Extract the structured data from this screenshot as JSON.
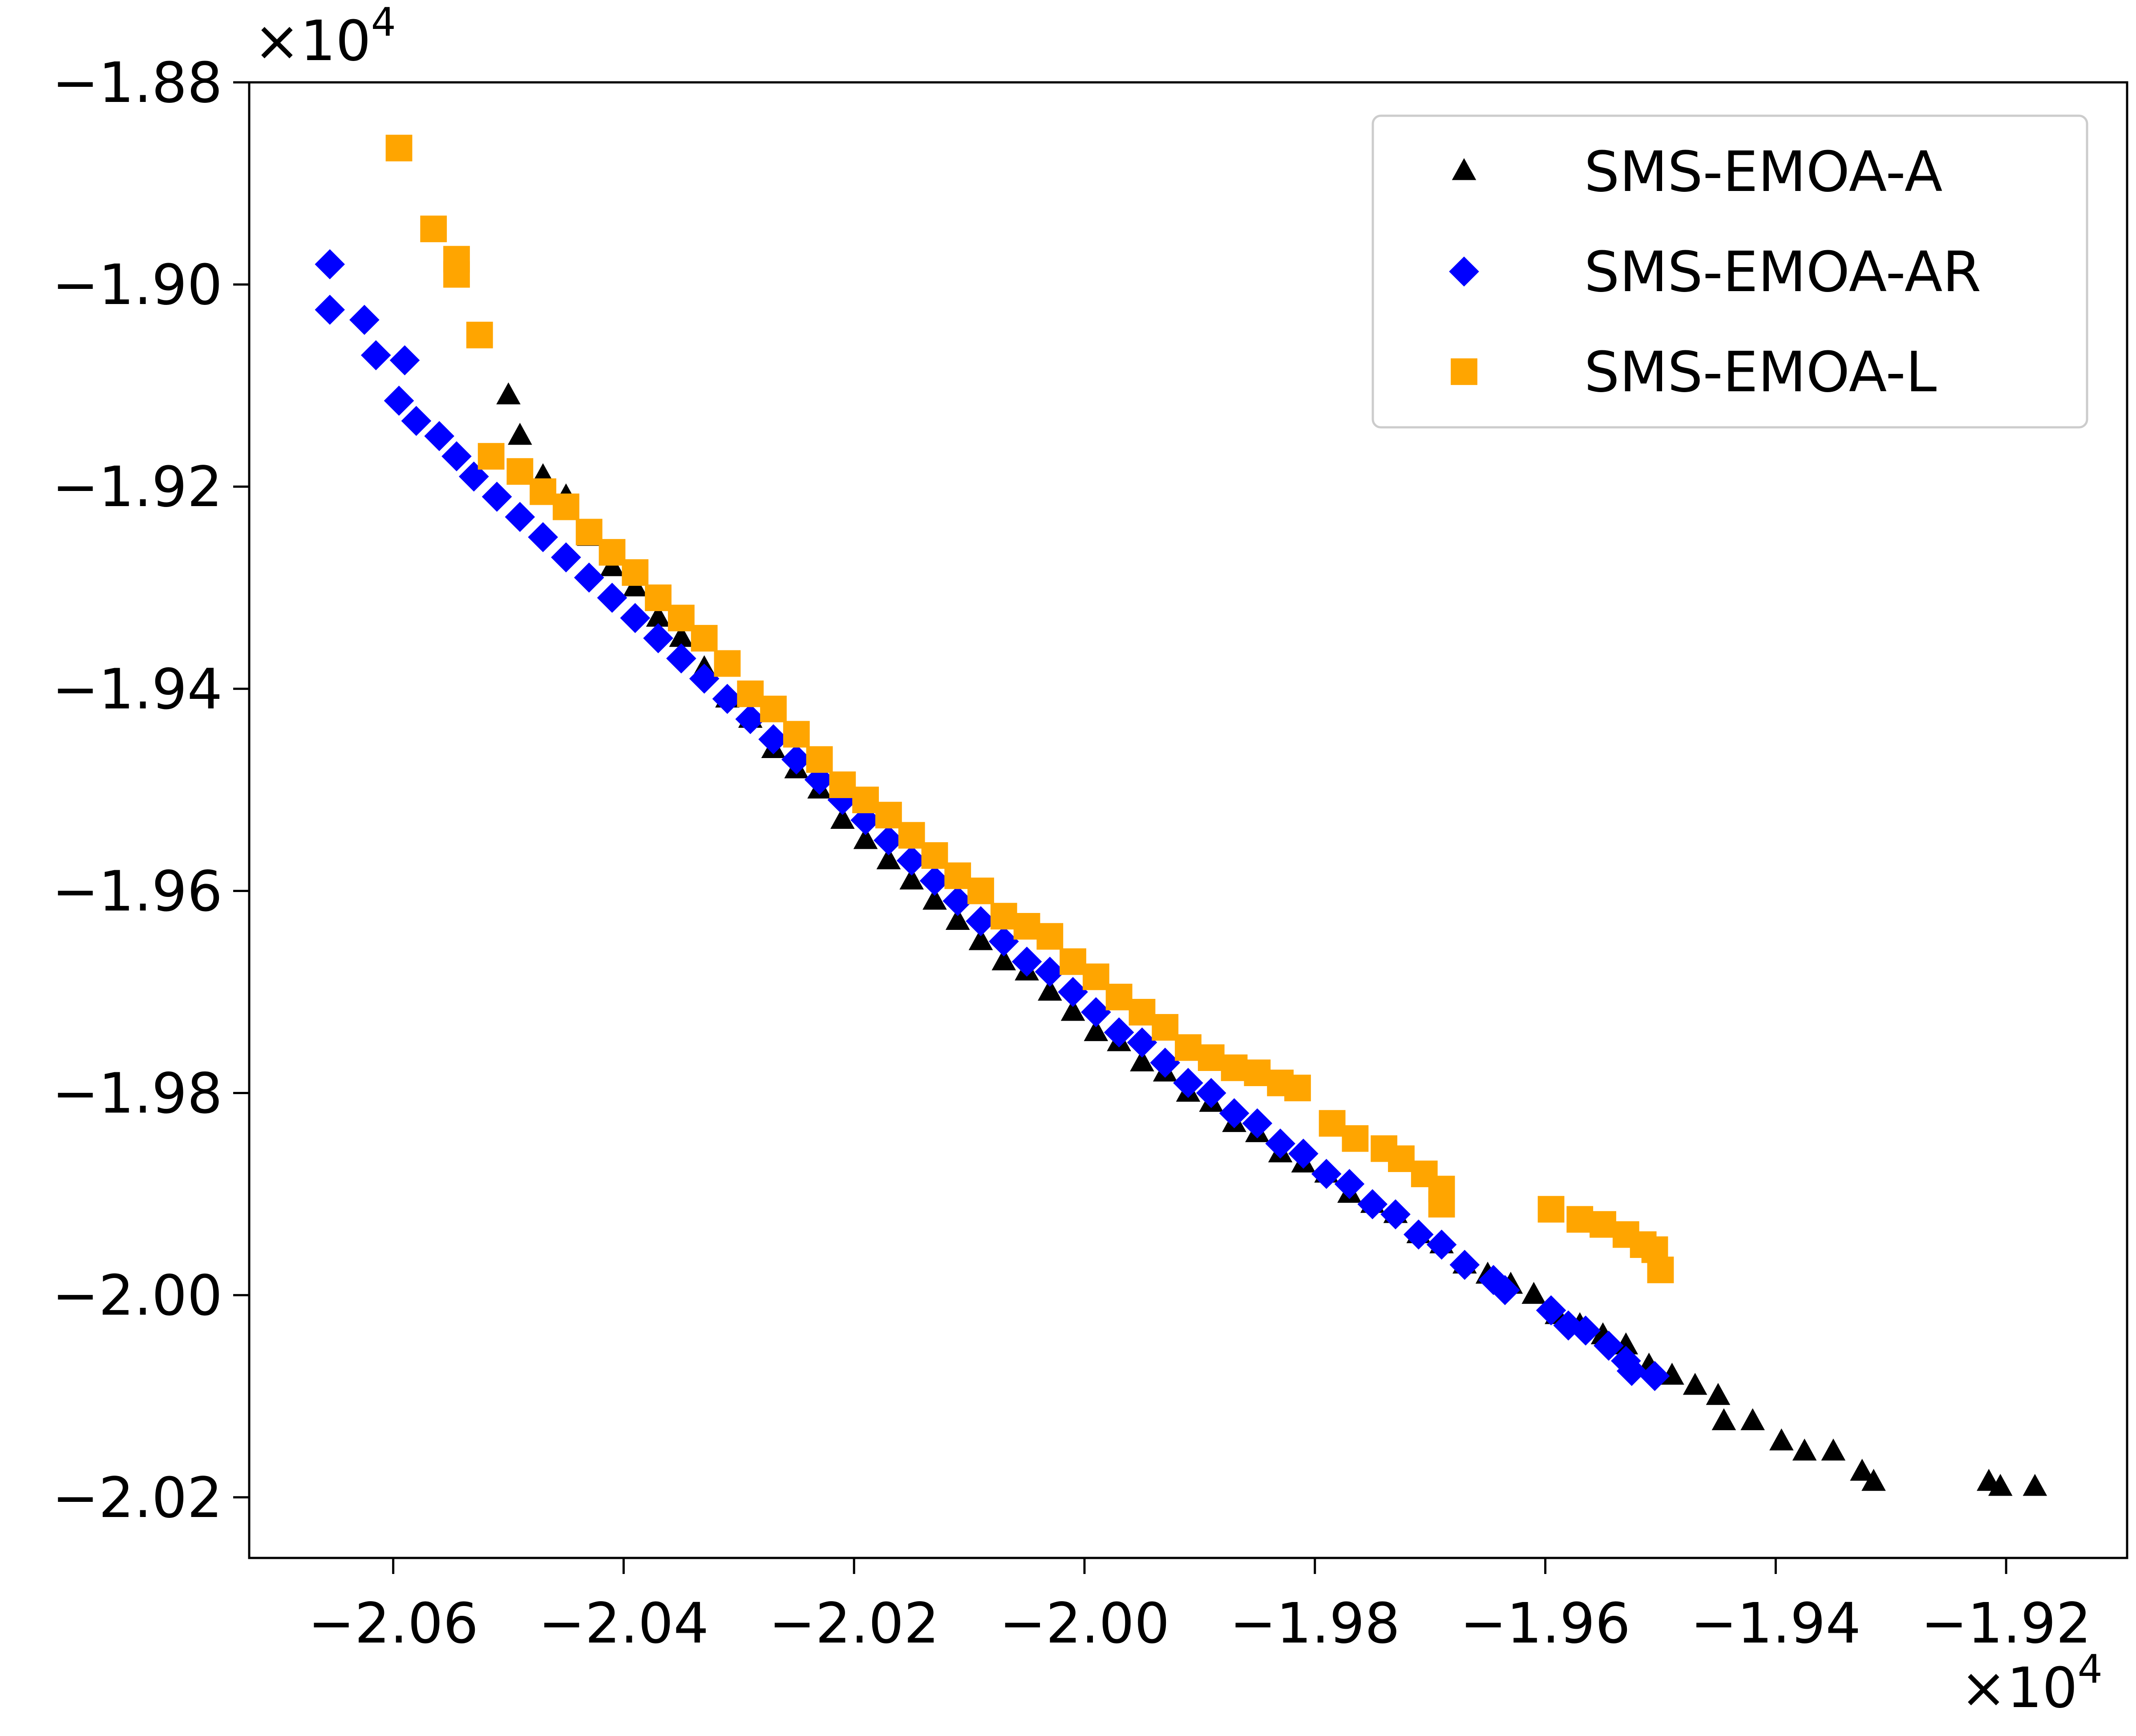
{
  "chart_data": {
    "type": "scatter",
    "x_multiplier_label": "×10",
    "x_multiplier_exp": "4",
    "y_multiplier_label": "×10",
    "y_multiplier_exp": "4",
    "xlim": [
      -2.0725,
      -1.9095
    ],
    "ylim": [
      -2.026,
      -1.88
    ],
    "x_ticks": [
      {
        "value": -2.06,
        "label": "−2.06"
      },
      {
        "value": -2.04,
        "label": "−2.04"
      },
      {
        "value": -2.02,
        "label": "−2.02"
      },
      {
        "value": -2.0,
        "label": "−2.00"
      },
      {
        "value": -1.98,
        "label": "−1.98"
      },
      {
        "value": -1.96,
        "label": "−1.96"
      },
      {
        "value": -1.94,
        "label": "−1.94"
      },
      {
        "value": -1.92,
        "label": "−1.92"
      }
    ],
    "y_ticks": [
      {
        "value": -1.88,
        "label": "−1.88"
      },
      {
        "value": -1.9,
        "label": "−1.90"
      },
      {
        "value": -1.92,
        "label": "−1.92"
      },
      {
        "value": -1.94,
        "label": "−1.94"
      },
      {
        "value": -1.96,
        "label": "−1.96"
      },
      {
        "value": -1.98,
        "label": "−1.98"
      },
      {
        "value": -2.0,
        "label": "−2.00"
      },
      {
        "value": -2.02,
        "label": "−2.02"
      }
    ],
    "legend_position": "top-right",
    "series": [
      {
        "name": "SMS-EMOA-A",
        "marker": "triangle",
        "color": "#000000",
        "points": [
          [
            -2.05,
            -1.911
          ],
          [
            -2.049,
            -1.915
          ],
          [
            -2.047,
            -1.919
          ],
          [
            -2.045,
            -1.921
          ],
          [
            -2.043,
            -1.925
          ],
          [
            -2.041,
            -1.928
          ],
          [
            -2.039,
            -1.93
          ],
          [
            -2.037,
            -1.933
          ],
          [
            -2.035,
            -1.935
          ],
          [
            -2.033,
            -1.938
          ],
          [
            -2.031,
            -1.941
          ],
          [
            -2.029,
            -1.943
          ],
          [
            -2.027,
            -1.946
          ],
          [
            -2.025,
            -1.948
          ],
          [
            -2.023,
            -1.95
          ],
          [
            -2.021,
            -1.953
          ],
          [
            -2.019,
            -1.955
          ],
          [
            -2.017,
            -1.957
          ],
          [
            -2.015,
            -1.959
          ],
          [
            -2.013,
            -1.961
          ],
          [
            -2.011,
            -1.963
          ],
          [
            -2.009,
            -1.965
          ],
          [
            -2.007,
            -1.967
          ],
          [
            -2.005,
            -1.968
          ],
          [
            -2.003,
            -1.97
          ],
          [
            -2.001,
            -1.972
          ],
          [
            -1.999,
            -1.974
          ],
          [
            -1.997,
            -1.975
          ],
          [
            -1.995,
            -1.977
          ],
          [
            -1.993,
            -1.978
          ],
          [
            -1.991,
            -1.98
          ],
          [
            -1.989,
            -1.981
          ],
          [
            -1.987,
            -1.983
          ],
          [
            -1.985,
            -1.984
          ],
          [
            -1.983,
            -1.986
          ],
          [
            -1.981,
            -1.987
          ],
          [
            -1.979,
            -1.988
          ],
          [
            -1.977,
            -1.99
          ],
          [
            -1.975,
            -1.991
          ],
          [
            -1.973,
            -1.992
          ],
          [
            -1.971,
            -1.994
          ],
          [
            -1.969,
            -1.995
          ],
          [
            -1.967,
            -1.997
          ],
          [
            -1.965,
            -1.998
          ],
          [
            -1.963,
            -1.999
          ],
          [
            -1.961,
            -2.0
          ],
          [
            -1.959,
            -2.002
          ],
          [
            -1.957,
            -2.003
          ],
          [
            -1.955,
            -2.004
          ],
          [
            -1.953,
            -2.005
          ],
          [
            -1.951,
            -2.007
          ],
          [
            -1.949,
            -2.008
          ],
          [
            -1.947,
            -2.009
          ],
          [
            -1.945,
            -2.01
          ],
          [
            -1.9445,
            -2.0125
          ],
          [
            -1.942,
            -2.0125
          ],
          [
            -1.9395,
            -2.0145
          ],
          [
            -1.9375,
            -2.0155
          ],
          [
            -1.935,
            -2.0155
          ],
          [
            -1.9325,
            -2.0175
          ],
          [
            -1.9315,
            -2.0185
          ],
          [
            -1.9215,
            -2.0185
          ],
          [
            -1.9205,
            -2.019
          ],
          [
            -1.9175,
            -2.019
          ]
        ]
      },
      {
        "name": "SMS-EMOA-AR",
        "marker": "diamond",
        "color": "#0000ff",
        "points": [
          [
            -2.0655,
            -1.898
          ],
          [
            -2.0655,
            -1.9025
          ],
          [
            -2.0625,
            -1.9035
          ],
          [
            -2.0615,
            -1.907
          ],
          [
            -2.059,
            -1.9075
          ],
          [
            -2.0595,
            -1.9115
          ],
          [
            -2.058,
            -1.9135
          ],
          [
            -2.056,
            -1.915
          ],
          [
            -2.0545,
            -1.917
          ],
          [
            -2.053,
            -1.919
          ],
          [
            -2.051,
            -1.921
          ],
          [
            -2.049,
            -1.923
          ],
          [
            -2.047,
            -1.925
          ],
          [
            -2.045,
            -1.927
          ],
          [
            -2.043,
            -1.929
          ],
          [
            -2.041,
            -1.931
          ],
          [
            -2.039,
            -1.933
          ],
          [
            -2.037,
            -1.935
          ],
          [
            -2.035,
            -1.937
          ],
          [
            -2.033,
            -1.939
          ],
          [
            -2.031,
            -1.941
          ],
          [
            -2.029,
            -1.943
          ],
          [
            -2.027,
            -1.945
          ],
          [
            -2.025,
            -1.947
          ],
          [
            -2.023,
            -1.949
          ],
          [
            -2.021,
            -1.951
          ],
          [
            -2.019,
            -1.953
          ],
          [
            -2.017,
            -1.955
          ],
          [
            -2.015,
            -1.957
          ],
          [
            -2.013,
            -1.959
          ],
          [
            -2.011,
            -1.961
          ],
          [
            -2.009,
            -1.963
          ],
          [
            -2.007,
            -1.965
          ],
          [
            -2.005,
            -1.967
          ],
          [
            -2.003,
            -1.968
          ],
          [
            -2.001,
            -1.97
          ],
          [
            -1.999,
            -1.972
          ],
          [
            -1.997,
            -1.974
          ],
          [
            -1.995,
            -1.975
          ],
          [
            -1.993,
            -1.977
          ],
          [
            -1.991,
            -1.979
          ],
          [
            -1.989,
            -1.98
          ],
          [
            -1.987,
            -1.982
          ],
          [
            -1.985,
            -1.983
          ],
          [
            -1.983,
            -1.985
          ],
          [
            -1.981,
            -1.986
          ],
          [
            -1.979,
            -1.988
          ],
          [
            -1.977,
            -1.989
          ],
          [
            -1.975,
            -1.991
          ],
          [
            -1.973,
            -1.992
          ],
          [
            -1.971,
            -1.994
          ],
          [
            -1.969,
            -1.995
          ],
          [
            -1.967,
            -1.997
          ],
          [
            -1.9645,
            -1.9985
          ],
          [
            -1.9635,
            -1.9995
          ],
          [
            -1.9595,
            -2.0015
          ],
          [
            -1.958,
            -2.003
          ],
          [
            -1.9565,
            -2.0035
          ],
          [
            -1.9545,
            -2.005
          ],
          [
            -1.953,
            -2.0065
          ],
          [
            -1.9525,
            -2.0075
          ],
          [
            -1.9505,
            -2.008
          ]
        ]
      },
      {
        "name": "SMS-EMOA-L",
        "marker": "square",
        "color": "#ffa500",
        "points": [
          [
            -2.0595,
            -1.8865
          ],
          [
            -2.0565,
            -1.8945
          ],
          [
            -2.0545,
            -1.8975
          ],
          [
            -2.0545,
            -1.899
          ],
          [
            -2.0525,
            -1.905
          ],
          [
            -2.0515,
            -1.917
          ],
          [
            -2.049,
            -1.9185
          ],
          [
            -2.047,
            -1.9205
          ],
          [
            -2.045,
            -1.922
          ],
          [
            -2.043,
            -1.9245
          ],
          [
            -2.041,
            -1.9265
          ],
          [
            -2.039,
            -1.9285
          ],
          [
            -2.037,
            -1.931
          ],
          [
            -2.035,
            -1.933
          ],
          [
            -2.033,
            -1.935
          ],
          [
            -2.031,
            -1.9375
          ],
          [
            -2.029,
            -1.9405
          ],
          [
            -2.027,
            -1.942
          ],
          [
            -2.025,
            -1.9445
          ],
          [
            -2.023,
            -1.947
          ],
          [
            -2.021,
            -1.9495
          ],
          [
            -2.019,
            -1.951
          ],
          [
            -2.017,
            -1.9525
          ],
          [
            -2.015,
            -1.9545
          ],
          [
            -2.013,
            -1.9565
          ],
          [
            -2.011,
            -1.9585
          ],
          [
            -2.009,
            -1.96
          ],
          [
            -2.007,
            -1.9625
          ],
          [
            -2.005,
            -1.9635
          ],
          [
            -2.003,
            -1.9645
          ],
          [
            -2.001,
            -1.967
          ],
          [
            -1.999,
            -1.9685
          ],
          [
            -1.997,
            -1.9705
          ],
          [
            -1.995,
            -1.972
          ],
          [
            -1.993,
            -1.9735
          ],
          [
            -1.991,
            -1.9755
          ],
          [
            -1.989,
            -1.9765
          ],
          [
            -1.987,
            -1.9775
          ],
          [
            -1.985,
            -1.978
          ],
          [
            -1.983,
            -1.979
          ],
          [
            -1.9815,
            -1.9795
          ],
          [
            -1.9785,
            -1.983
          ],
          [
            -1.9765,
            -1.9845
          ],
          [
            -1.974,
            -1.9855
          ],
          [
            -1.9725,
            -1.9865
          ],
          [
            -1.9705,
            -1.988
          ],
          [
            -1.969,
            -1.9895
          ],
          [
            -1.969,
            -1.991
          ],
          [
            -1.9595,
            -1.9915
          ],
          [
            -1.957,
            -1.9925
          ],
          [
            -1.955,
            -1.993
          ],
          [
            -1.953,
            -1.994
          ],
          [
            -1.9515,
            -1.995
          ],
          [
            -1.9505,
            -1.9955
          ],
          [
            -1.95,
            -1.9975
          ]
        ]
      }
    ]
  }
}
